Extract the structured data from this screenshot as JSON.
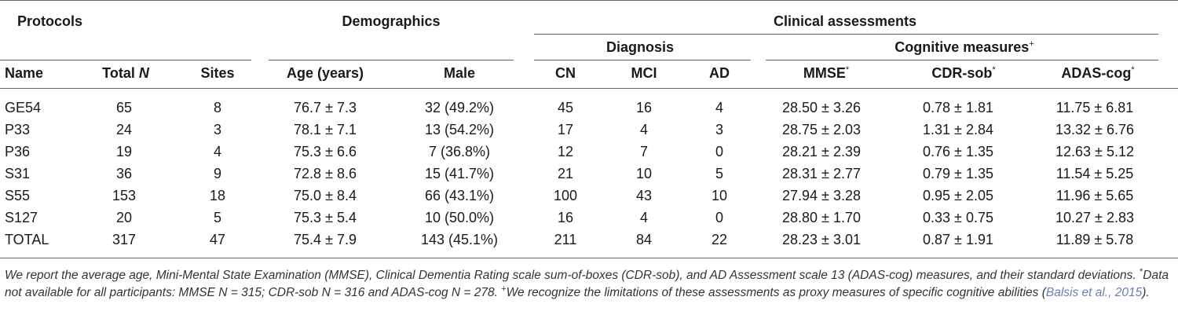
{
  "header": {
    "groups": {
      "protocols": "Protocols",
      "demographics": "Demographics",
      "clinical": "Clinical assessments"
    },
    "subgroups": {
      "diagnosis": "Diagnosis",
      "cognitive": "Cognitive measures",
      "cognitive_mark": "+"
    },
    "columns": {
      "name": "Name",
      "total": "Total ",
      "total_n": "N",
      "sites": "Sites",
      "age": "Age (years)",
      "male": "Male",
      "cn": "CN",
      "mci": "MCI",
      "ad": "AD",
      "mmse": "MMSE",
      "cdr": "CDR-sob",
      "adas": "ADAS-cog",
      "star": "*"
    }
  },
  "rows": [
    {
      "name": "GE54",
      "total": "65",
      "sites": "8",
      "age": "76.7 ± 7.3",
      "male": "32 (49.2%)",
      "cn": "45",
      "mci": "16",
      "ad": "4",
      "mmse": "28.50 ± 3.26",
      "cdr": "0.78 ± 1.81",
      "adas": "11.75 ± 6.81"
    },
    {
      "name": "P33",
      "total": "24",
      "sites": "3",
      "age": "78.1 ± 7.1",
      "male": "13 (54.2%)",
      "cn": "17",
      "mci": "4",
      "ad": "3",
      "mmse": "28.75 ± 2.03",
      "cdr": "1.31 ± 2.84",
      "adas": "13.32 ± 6.76"
    },
    {
      "name": "P36",
      "total": "19",
      "sites": "4",
      "age": "75.3 ± 6.6",
      "male": "7 (36.8%)",
      "cn": "12",
      "mci": "7",
      "ad": "0",
      "mmse": "28.21 ± 2.39",
      "cdr": "0.76 ± 1.35",
      "adas": "12.63 ± 5.12"
    },
    {
      "name": "S31",
      "total": "36",
      "sites": "9",
      "age": "72.8 ± 8.6",
      "male": "15 (41.7%)",
      "cn": "21",
      "mci": "10",
      "ad": "5",
      "mmse": "28.31 ± 2.77",
      "cdr": "0.79 ± 1.35",
      "adas": "11.54 ± 5.25"
    },
    {
      "name": "S55",
      "total": "153",
      "sites": "18",
      "age": "75.0 ± 8.4",
      "male": "66 (43.1%)",
      "cn": "100",
      "mci": "43",
      "ad": "10",
      "mmse": "27.94 ± 3.28",
      "cdr": "0.95 ± 2.05",
      "adas": "11.96 ± 5.65"
    },
    {
      "name": "S127",
      "total": "20",
      "sites": "5",
      "age": "75.3 ± 5.4",
      "male": "10 (50.0%)",
      "cn": "16",
      "mci": "4",
      "ad": "0",
      "mmse": "28.80 ± 1.70",
      "cdr": "0.33 ± 0.75",
      "adas": "10.27 ± 2.83"
    },
    {
      "name": "TOTAL",
      "total": "317",
      "sites": "47",
      "age": "75.4 ± 7.9",
      "male": "143 (45.1%)",
      "cn": "211",
      "mci": "84",
      "ad": "22",
      "mmse": "28.23 ± 3.01",
      "cdr": "0.87 ± 1.91",
      "adas": "11.89 ± 5.78"
    }
  ],
  "footnote": {
    "p1": "We report the average age, Mini-Mental State Examination (MMSE), Clinical Dementia Rating scale sum-of-boxes (CDR-sob), and AD Assessment scale 13 (ADAS-cog) measures, and their standard deviations. ",
    "star": "*",
    "p2": "Data not available for all participants: MMSE N = 315; CDR-sob N = 316 and ADAS-cog N = 278. ",
    "plus": "+",
    "p3": "We recognize the limitations of these assessments as proxy measures of specific cognitive abilities (",
    "cite": "Balsis et al., 2015",
    "p4": ")."
  }
}
